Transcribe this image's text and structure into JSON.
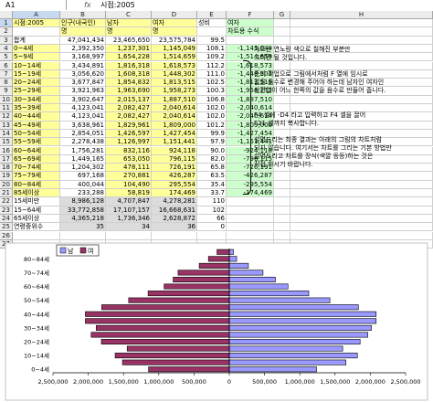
{
  "formula_bar": {
    "name_box": "A1",
    "fx": "fx",
    "value": "시점:2005"
  },
  "columns": [
    "A",
    "B",
    "C",
    "D",
    "E",
    "F",
    "G",
    "H"
  ],
  "header_rows": [
    [
      "시점:2005",
      "인구(내국인)",
      "남자",
      "여자",
      "성비",
      "여자",
      "",
      ""
    ],
    [
      "",
      "명",
      "명",
      "명",
      "",
      "차트용 수식",
      "",
      ""
    ]
  ],
  "rows": [
    [
      "합계",
      "47,041,434",
      "23,465,650",
      "23,575,784",
      "99.5",
      ""
    ],
    [
      "0~4세",
      "2,392,350",
      "1,237,301",
      "1,145,049",
      "108.1",
      "-1,145,049"
    ],
    [
      "5~9세",
      "3,168,997",
      "1,654,228",
      "1,514,659",
      "109.2",
      "-1,514,659"
    ],
    [
      "10~14세",
      "3,434,891",
      "1,816,318",
      "1,618,573",
      "112.2",
      "-1,618,573"
    ],
    [
      "15~19세",
      "3,056,620",
      "1,608,318",
      "1,448,302",
      "111.0",
      "-1,448,302"
    ],
    [
      "20~24세",
      "3,677,847",
      "1,854,832",
      "1,813,515",
      "102.5",
      "-1,813,515"
    ],
    [
      "25~29세",
      "3,921,963",
      "1,963,690",
      "1,958,273",
      "100.3",
      "-1,958,273"
    ],
    [
      "30~34세",
      "3,902,647",
      "2,015,137",
      "1,887,510",
      "106.8",
      "-1,887,510"
    ],
    [
      "35~39세",
      "4,123,041",
      "2,082,427",
      "2,040,614",
      "102.0",
      "-2,040,614"
    ],
    [
      "40~44세",
      "4,123,041",
      "2,082,427",
      "2,040,614",
      "102.0",
      "-2,040,614"
    ],
    [
      "45~49세",
      "3,638,961",
      "1,829,961",
      "1,809,000",
      "101.2",
      "-1,809,000"
    ],
    [
      "50~54세",
      "2,854,051",
      "1,426,597",
      "1,427,454",
      "99.9",
      "-1,427,454"
    ],
    [
      "55~59세",
      "2,278,438",
      "1,126,997",
      "1,151,441",
      "97.9",
      "-1,151,441"
    ],
    [
      "60~64세",
      "1,756,281",
      "832,116",
      "924,118",
      "90.0",
      "-924,118"
    ],
    [
      "65~69세",
      "1,449,165",
      "653,050",
      "796,115",
      "82.0",
      "-796,115"
    ],
    [
      "70~74세",
      "1,204,302",
      "478,111",
      "726,191",
      "65.8",
      "-726,191"
    ],
    [
      "75~79세",
      "697,168",
      "270,881",
      "426,287",
      "63.5",
      "-426,287"
    ],
    [
      "80~84세",
      "400,044",
      "104,490",
      "295,554",
      "35.4",
      "-295,554"
    ],
    [
      "85세이상",
      "233,288",
      "58,819",
      "174,469",
      "33.7",
      "-174,469"
    ],
    [
      "15세미만",
      "8,986,128",
      "4,707,847",
      "4,278,281",
      "110",
      ""
    ],
    [
      "15~64세",
      "33,772,858",
      "17,107,157",
      "16,668,631",
      "102",
      ""
    ],
    [
      "65세이상",
      "4,365,218",
      "1,736,346",
      "2,628,872",
      "66",
      ""
    ],
    [
      "연령중위수",
      "35",
      "34",
      "36",
      "0",
      ""
    ]
  ],
  "notes": {
    "n1": "차트는 연노랑 색으로 칠해진 부분만",
    "n2": "그리면 될 것입니다.",
    "n3": "준비 작업으로 그림에서처럼 F 열에 임시로",
    "n4": "값을 음수로 변경해 주어야 하는데 남자인 여자인",
    "n5": "상관없이 어느 한쪽의 값을 음수로 만들어 줍니다.",
    "n6": "F4 셀에 -D4 라고 입력하고 F4 셀을 끌어",
    "n7": "F21 셀까지 복사합니다.",
    "n8": "설명드리는 최종 결과는 아래의 그림의 차트처럼",
    "n9": "되지 않습니다. 여기서는 차트를 그리는 기본 방법만",
    "n10": "설명드리고 차트를 장식(색깔 등등)하는 것은",
    "n11": "직접 하시기 바랍니다."
  },
  "chart_data": {
    "type": "bar",
    "orientation": "horizontal",
    "categories": [
      "0~4세",
      "5~9세",
      "10~14세",
      "15~19세",
      "20~24세",
      "25~29세",
      "30~34세",
      "35~39세",
      "40~44세",
      "45~49세",
      "50~54세",
      "55~59세",
      "60~64세",
      "65~69세",
      "70~74세",
      "75~79세",
      "80~84세",
      "85세이상"
    ],
    "category_tick_labels": [
      "0~4세",
      "10~14세",
      "20~24세",
      "30~34세",
      "40~44세",
      "50~54세",
      "60~64세",
      "70~74세",
      "80~84세"
    ],
    "series": [
      {
        "name": "남",
        "color": "#9999ff",
        "values": [
          1237301,
          1654228,
          1816318,
          1608318,
          1854832,
          1963690,
          2015137,
          2082427,
          2082427,
          1829961,
          1426597,
          1126997,
          832116,
          653050,
          478111,
          270881,
          104490,
          58819
        ]
      },
      {
        "name": "여",
        "color": "#993366",
        "values": [
          -1145049,
          -1514659,
          -1618573,
          -1448302,
          -1813515,
          -1958273,
          -1887510,
          -2040614,
          -2040614,
          -1809000,
          -1427454,
          -1151441,
          -924118,
          -796115,
          -726191,
          -426287,
          -295554,
          -174469
        ]
      }
    ],
    "xlim": [
      -2500000,
      2500000
    ],
    "x_ticks": [
      "2,500,000",
      "2,000,000",
      "1,500,000",
      "1,000,000",
      "500,000",
      "0",
      "500,000",
      "1,000,000",
      "1,500,000",
      "2,000,000",
      "2,500,000"
    ],
    "legend_position": "top-left",
    "grid": false
  }
}
